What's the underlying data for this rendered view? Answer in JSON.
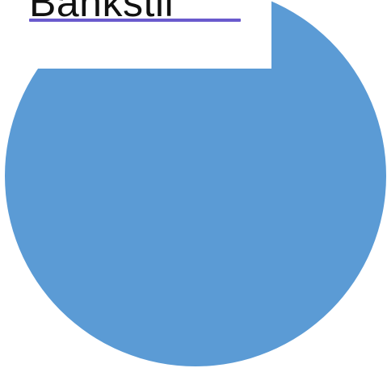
{
  "logo": {
    "text": "Bankstil"
  },
  "colors": {
    "circle_fill": "#5b9bd5",
    "underline": "#6a5acd",
    "background": "#ffffff",
    "text": "#111111"
  }
}
